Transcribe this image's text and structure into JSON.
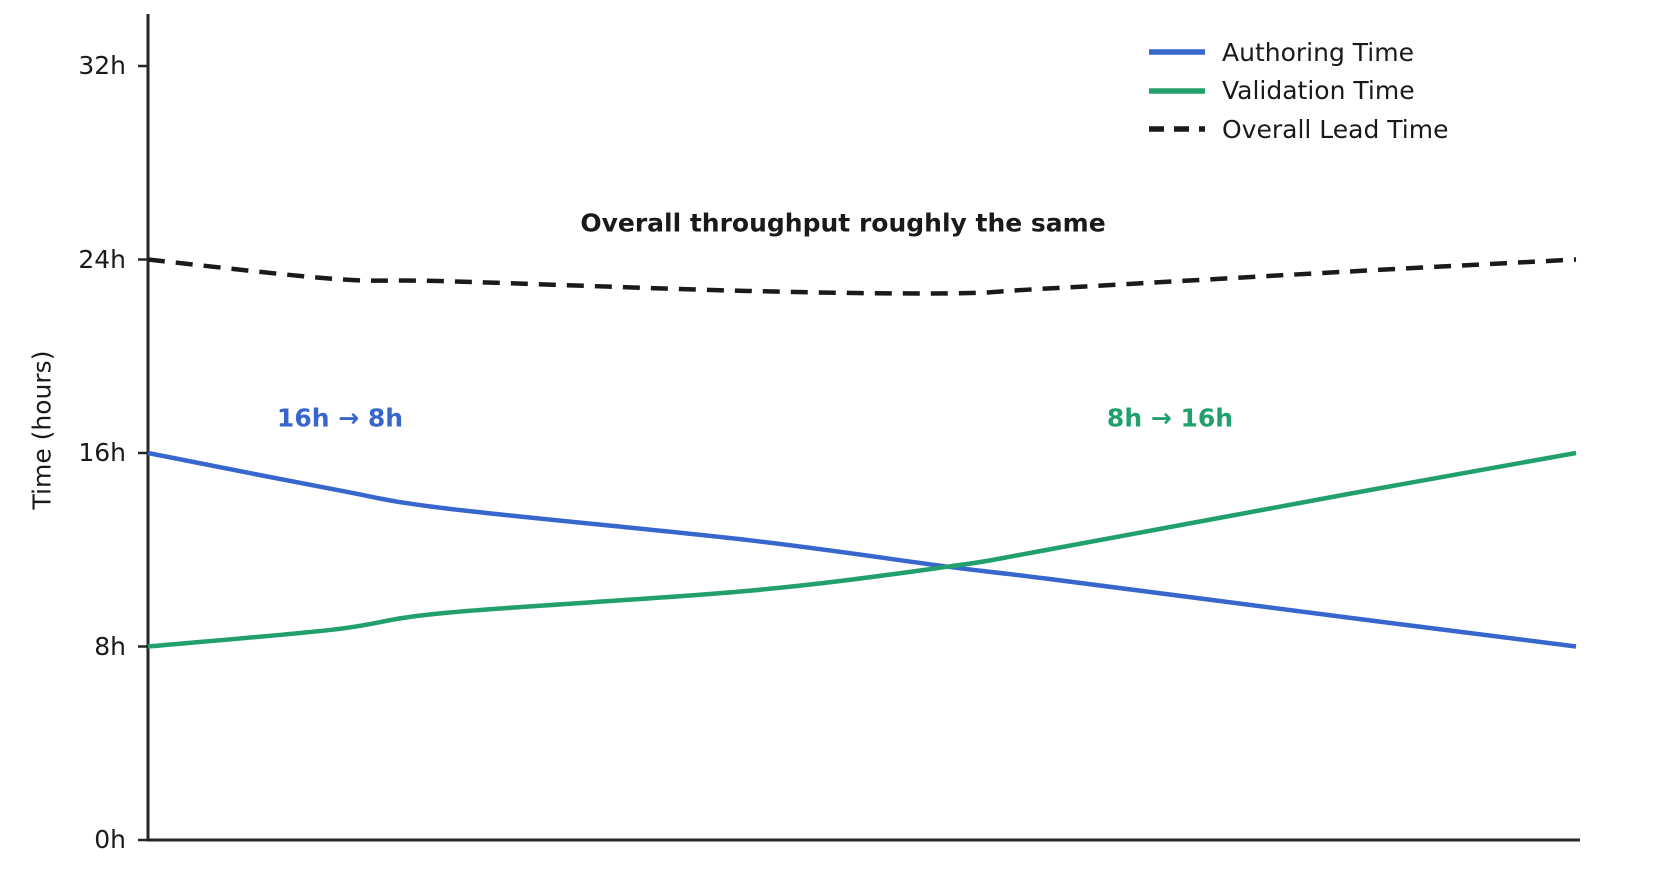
{
  "figure": {
    "background": "#ffffff",
    "axis_color": "#262626",
    "text_color": "#1a1a1a"
  },
  "chart_data": {
    "type": "line",
    "title": "",
    "xlabel": "",
    "ylabel": "Time (hours)",
    "ylim": [
      0,
      34.2
    ],
    "grid": false,
    "x_tick_labels_visible": false,
    "y_ticks": [
      {
        "value": 0,
        "label": "0h"
      },
      {
        "value": 8,
        "label": "8h"
      },
      {
        "value": 16,
        "label": "16h"
      },
      {
        "value": 24,
        "label": "24h"
      },
      {
        "value": 32,
        "label": "32h"
      }
    ],
    "x": [
      0,
      0.13,
      0.21,
      0.42,
      0.56,
      0.63,
      0.84,
      1
    ],
    "series": [
      {
        "name": "Authoring Time",
        "color": "#3766cc",
        "style": "solid",
        "values": [
          16,
          14.5,
          13.7,
          12.4,
          11.3,
          10.8,
          9.2,
          8
        ]
      },
      {
        "name": "Validation Time",
        "color": "#21a06c",
        "style": "solid",
        "values": [
          8,
          8.7,
          9.4,
          10.3,
          11.3,
          12.0,
          14.3,
          16
        ]
      },
      {
        "name": "Overall Lead Time",
        "color": "#1a1a1a",
        "style": "dashed",
        "values": [
          24,
          23.2,
          23.1,
          22.7,
          22.6,
          22.8,
          23.5,
          24
        ]
      }
    ],
    "legend": {
      "position": "upper right",
      "frame": false
    },
    "annotations": [
      {
        "id": "overall",
        "text": "Overall throughput roughly the same",
        "color": "#1a1a1a"
      },
      {
        "id": "authoring",
        "text": "16h → 8h",
        "color": "#3766cc"
      },
      {
        "id": "validation",
        "text": "8h → 16h",
        "color": "#21a06c"
      }
    ]
  }
}
